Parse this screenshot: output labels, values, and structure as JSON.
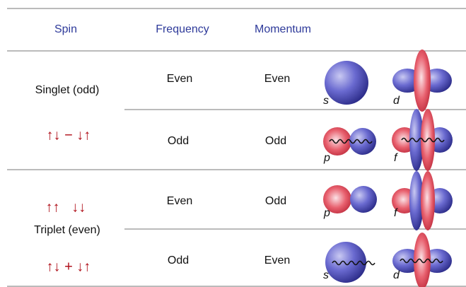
{
  "header": {
    "columns": [
      "Spin",
      "Frequency",
      "Momentum"
    ]
  },
  "spin_groups": [
    {
      "label": "Singlet (odd)",
      "states": [
        "↑↓ − ↓↑"
      ]
    },
    {
      "label": "Triplet (even)",
      "states": [
        "↑↑   ↓↓",
        "↑↓ + ↓↑"
      ]
    }
  ],
  "rows": [
    {
      "frequency": "Even",
      "momentum": "Even",
      "orbitals": [
        "s",
        "d"
      ]
    },
    {
      "frequency": "Odd",
      "momentum": "Odd",
      "orbitals": [
        "p",
        "f"
      ]
    },
    {
      "frequency": "Even",
      "momentum": "Odd",
      "orbitals": [
        "p",
        "f"
      ]
    },
    {
      "frequency": "Odd",
      "momentum": "Even",
      "orbitals": [
        "s",
        "d"
      ]
    }
  ]
}
